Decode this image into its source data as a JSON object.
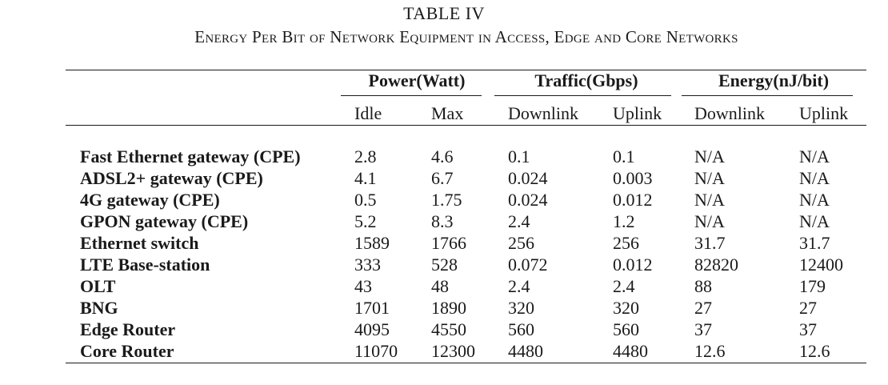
{
  "table": {
    "label": "TABLE IV",
    "caption": "Energy Per Bit of Network Equipment in Access, Edge and Core Networks",
    "groups": {
      "power": "Power(Watt)",
      "traffic": "Traffic(Gbps)",
      "energy": "Energy(nJ/bit)"
    },
    "subheaders": {
      "idle": "Idle",
      "max": "Max",
      "traffic_down": "Downlink",
      "traffic_up": "Uplink",
      "energy_down": "Downlink",
      "energy_up": "Uplink"
    },
    "rows": [
      {
        "name": "Fast Ethernet gateway (CPE)",
        "idle": "2.8",
        "max": "4.6",
        "traffic_down": "0.1",
        "traffic_up": "0.1",
        "energy_down": "N/A",
        "energy_up": "N/A"
      },
      {
        "name": "ADSL2+ gateway (CPE)",
        "idle": "4.1",
        "max": "6.7",
        "traffic_down": "0.024",
        "traffic_up": "0.003",
        "energy_down": "N/A",
        "energy_up": "N/A"
      },
      {
        "name": "4G gateway (CPE)",
        "idle": "0.5",
        "max": "1.75",
        "traffic_down": "0.024",
        "traffic_up": "0.012",
        "energy_down": "N/A",
        "energy_up": "N/A"
      },
      {
        "name": "GPON gateway (CPE)",
        "idle": "5.2",
        "max": "8.3",
        "traffic_down": "2.4",
        "traffic_up": "1.2",
        "energy_down": "N/A",
        "energy_up": "N/A"
      },
      {
        "name": "Ethernet switch",
        "idle": "1589",
        "max": "1766",
        "traffic_down": "256",
        "traffic_up": "256",
        "energy_down": "31.7",
        "energy_up": "31.7"
      },
      {
        "name": "LTE Base-station",
        "idle": "333",
        "max": "528",
        "traffic_down": "0.072",
        "traffic_up": "0.012",
        "energy_down": "82820",
        "energy_up": "12400"
      },
      {
        "name": "OLT",
        "idle": "43",
        "max": "48",
        "traffic_down": "2.4",
        "traffic_up": "2.4",
        "energy_down": "88",
        "energy_up": "179"
      },
      {
        "name": "BNG",
        "idle": "1701",
        "max": "1890",
        "traffic_down": "320",
        "traffic_up": "320",
        "energy_down": "27",
        "energy_up": "27"
      },
      {
        "name": "Edge Router",
        "idle": "4095",
        "max": "4550",
        "traffic_down": "560",
        "traffic_up": "560",
        "energy_down": "37",
        "energy_up": "37"
      },
      {
        "name": "Core Router",
        "idle": "11070",
        "max": "12300",
        "traffic_down": "4480",
        "traffic_up": "4480",
        "energy_down": "12.6",
        "energy_up": "12.6"
      }
    ]
  }
}
